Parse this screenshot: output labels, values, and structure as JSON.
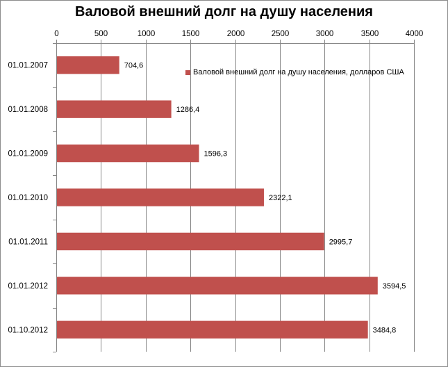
{
  "chart_data": {
    "type": "bar",
    "orientation": "horizontal",
    "title": "Валовой внешний долг на душу населения",
    "categories": [
      "01.01.2007",
      "01.01.2008",
      "01.01.2009",
      "01.01.2010",
      "01.01.2011",
      "01.01.2012",
      "01.10.2012"
    ],
    "series": [
      {
        "name": "Валовой внешний  долг на душу населения, долларов США",
        "values": [
          704.6,
          1286.4,
          1596.3,
          2322.1,
          2995.7,
          3594.5,
          3484.8
        ],
        "data_labels": [
          "704,6",
          "1286,4",
          "1596,3",
          "2322,1",
          "2995,7",
          "3594,5",
          "3484,8"
        ],
        "color": "#c0504d"
      }
    ],
    "x_ticks": [
      "0",
      "500",
      "1000",
      "1500",
      "2000",
      "2500",
      "3000",
      "3500",
      "4000"
    ],
    "xlim": [
      0,
      4000
    ],
    "value_axis_position": "top",
    "grid": true,
    "legend_position": "right"
  }
}
